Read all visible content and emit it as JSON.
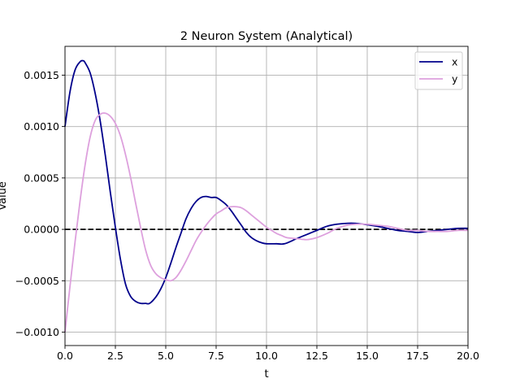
{
  "chart_data": {
    "type": "line",
    "title": "2 Neuron System (Analytical)",
    "xlabel": "t",
    "ylabel": "Value",
    "xlim": [
      0,
      20
    ],
    "ylim": [
      -0.00113,
      0.00178
    ],
    "x_ticks": [
      0,
      2.5,
      5,
      7.5,
      10,
      12.5,
      15,
      17.5,
      20
    ],
    "x_tick_labels": [
      "0.0",
      "2.5",
      "5.0",
      "7.5",
      "10.0",
      "12.5",
      "15.0",
      "17.5",
      "20.0"
    ],
    "y_ticks": [
      -0.001,
      -0.0005,
      0,
      0.0005,
      0.001,
      0.0015
    ],
    "y_tick_labels": [
      "−0.0010",
      "−0.0005",
      "0.0000",
      "0.0005",
      "0.0010",
      "0.0015"
    ],
    "grid": true,
    "legend_position": "top-right",
    "reference_line": {
      "y": 0,
      "style": "dashed",
      "color": "#000000"
    },
    "series": [
      {
        "name": "x",
        "color": "#00008b",
        "x": [
          0,
          0.25,
          0.5,
          0.75,
          0.9,
          1.0,
          1.25,
          1.5,
          1.75,
          2.0,
          2.25,
          2.5,
          2.75,
          3.0,
          3.25,
          3.5,
          3.75,
          4.0,
          4.2,
          4.5,
          4.75,
          5.0,
          5.25,
          5.5,
          5.75,
          6.0,
          6.25,
          6.5,
          6.75,
          7.0,
          7.25,
          7.5,
          7.75,
          8.0,
          8.25,
          8.5,
          8.75,
          9.0,
          9.25,
          9.5,
          9.75,
          10.0,
          10.5,
          10.9,
          11.5,
          12.0,
          12.5,
          13.0,
          13.5,
          14.2,
          14.8,
          15.5,
          16.0,
          16.5,
          17.0,
          17.5,
          18.0,
          18.5,
          19.0,
          19.5,
          20.0
        ],
        "y": [
          0.001,
          0.00134,
          0.00155,
          0.00163,
          0.00164,
          0.00162,
          0.00152,
          0.00132,
          0.00105,
          0.00072,
          0.00036,
          2e-05,
          -0.00029,
          -0.00053,
          -0.00065,
          -0.0007,
          -0.00072,
          -0.00072,
          -0.00072,
          -0.00066,
          -0.00058,
          -0.00047,
          -0.00033,
          -0.00018,
          -4e-05,
          0.0001,
          0.0002,
          0.00027,
          0.00031,
          0.00032,
          0.00031,
          0.00031,
          0.00028,
          0.00024,
          0.00018,
          0.00011,
          4e-05,
          -3e-05,
          -8e-05,
          -0.00011,
          -0.00013,
          -0.00014,
          -0.00014,
          -0.00014,
          -9e-05,
          -5e-05,
          -1e-05,
          3e-05,
          5e-05,
          6e-05,
          5e-05,
          3e-05,
          1e-05,
          -1e-05,
          -2e-05,
          -3e-05,
          -2e-05,
          -1e-05,
          0.0,
          1e-05,
          1e-05
        ]
      },
      {
        "name": "y",
        "color": "#dda0dd",
        "x": [
          0,
          0.25,
          0.5,
          0.75,
          1.0,
          1.25,
          1.5,
          1.75,
          2.0,
          2.25,
          2.5,
          2.75,
          3.0,
          3.25,
          3.5,
          3.75,
          4.0,
          4.25,
          4.5,
          4.75,
          5.0,
          5.25,
          5.5,
          5.75,
          6.0,
          6.25,
          6.5,
          6.75,
          7.0,
          7.25,
          7.5,
          7.75,
          8.0,
          8.25,
          8.5,
          8.75,
          9.0,
          9.25,
          9.5,
          9.75,
          10.0,
          10.25,
          10.5,
          10.75,
          11.0,
          11.5,
          12.0,
          12.5,
          13.0,
          13.5,
          14.0,
          14.5,
          15.0,
          15.5,
          16.0,
          16.5,
          17.0,
          17.5,
          18.0,
          18.5,
          19.0,
          19.5,
          20.0
        ],
        "y": [
          -0.001,
          -0.00055,
          -0.00012,
          0.00028,
          0.00063,
          0.0009,
          0.00106,
          0.00112,
          0.00113,
          0.0011,
          0.00103,
          0.00091,
          0.00073,
          0.00051,
          0.00026,
          2e-05,
          -0.0002,
          -0.00035,
          -0.00043,
          -0.00047,
          -0.00049,
          -0.0005,
          -0.00047,
          -0.0004,
          -0.00031,
          -0.00021,
          -0.00011,
          -3e-05,
          4e-05,
          0.0001,
          0.00015,
          0.00018,
          0.00021,
          0.00022,
          0.00022,
          0.00021,
          0.00018,
          0.00014,
          0.0001,
          6e-05,
          2e-05,
          -1e-05,
          -4e-05,
          -6e-05,
          -8e-05,
          -9e-05,
          -0.0001,
          -8e-05,
          -4e-05,
          1e-05,
          4e-05,
          5e-05,
          5e-05,
          4e-05,
          3e-05,
          1e-05,
          -1e-05,
          -1e-05,
          -2e-05,
          -2e-05,
          -2e-05,
          -1e-05,
          -1e-05
        ]
      }
    ]
  }
}
